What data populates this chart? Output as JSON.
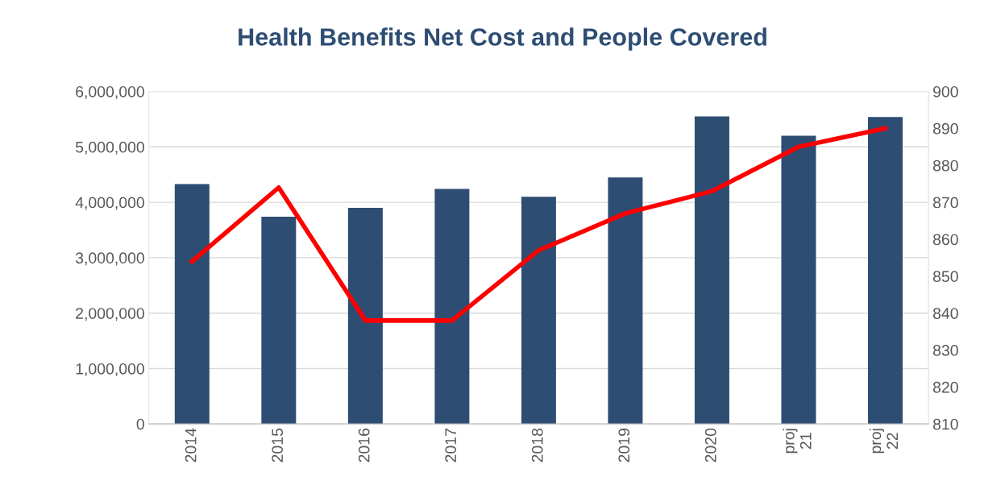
{
  "chart_data": {
    "type": "bar",
    "title": "Health Benefits Net Cost and People Covered",
    "categories": [
      "2014",
      "2015",
      "2016",
      "2017",
      "2018",
      "2019",
      "2020",
      "proj\n21",
      "proj\n22"
    ],
    "series": [
      {
        "color": "#2e4d73",
        "values": [
          4330000,
          3740000,
          3900000,
          4240000,
          4100000,
          4450000,
          5550000,
          5200000,
          5540000
        ]
      },
      {
        "type": "line",
        "axis": "y2",
        "color": "#ff0000",
        "values": [
          854,
          874,
          838,
          838,
          857,
          867,
          873,
          885,
          890
        ]
      }
    ],
    "ylim": [
      0,
      6000000
    ],
    "yticks": [
      {
        "value": 0,
        "label": "0"
      },
      {
        "value": 1000000,
        "label": "1,000,000"
      },
      {
        "value": 2000000,
        "label": "2,000,000"
      },
      {
        "value": 3000000,
        "label": "3,000,000"
      },
      {
        "value": 4000000,
        "label": "4,000,000"
      },
      {
        "value": 5000000,
        "label": "5,000,000"
      },
      {
        "value": 6000000,
        "label": "6,000,000"
      }
    ],
    "y2lim": [
      810,
      900
    ],
    "y2ticks": [
      810,
      820,
      830,
      840,
      850,
      860,
      870,
      880,
      890,
      900
    ],
    "grid": "y",
    "legend": false,
    "marker": "none",
    "line_style": "solid"
  }
}
